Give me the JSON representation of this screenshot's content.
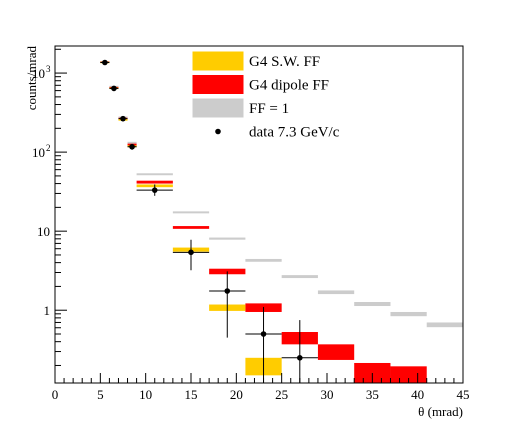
{
  "chart_data": {
    "type": "scatter",
    "title": "",
    "xlabel": "θ (mrad)",
    "ylabel": "counts/mrad",
    "xlim": [
      0,
      45
    ],
    "ylim": [
      0.12,
      2200
    ],
    "yscale": "log",
    "x_ticks": [
      "0",
      "5",
      "10",
      "15",
      "20",
      "25",
      "30",
      "35",
      "40",
      "45"
    ],
    "y_ticks": [
      {
        "value": 1,
        "base": "1",
        "exp": ""
      },
      {
        "value": 10,
        "base": "10",
        "exp": ""
      },
      {
        "value": 100,
        "base": "10",
        "exp": "2"
      },
      {
        "value": 1000,
        "base": "10",
        "exp": "3"
      }
    ],
    "grid": false,
    "legend_position": "top-right",
    "legend": [
      {
        "label": "G4 S.W. FF",
        "style": "box",
        "fill": "#ffcc00",
        "stroke": "#ffcc00"
      },
      {
        "label": "G4 dipole FF",
        "style": "box",
        "fill": "#ff0000",
        "stroke": "#ff0000"
      },
      {
        "label": "FF = 1",
        "style": "box",
        "fill": "#cccccc",
        "stroke": "#cccccc"
      },
      {
        "label": "data 7.3 GeV/c",
        "style": "marker",
        "fill": "#000000",
        "stroke": "#000000"
      }
    ],
    "series": [
      {
        "name": "FF = 1",
        "color": "#cccccc",
        "bins": [
          {
            "x0": 5,
            "x1": 6,
            "y0": 1380,
            "y1": 1420
          },
          {
            "x0": 6,
            "x1": 7,
            "y0": 660,
            "y1": 690
          },
          {
            "x0": 7,
            "x1": 8,
            "y0": 268,
            "y1": 282
          },
          {
            "x0": 8,
            "x1": 9,
            "y0": 127,
            "y1": 135
          },
          {
            "x0": 9,
            "x1": 13,
            "y0": 51,
            "y1": 54
          },
          {
            "x0": 13,
            "x1": 17,
            "y0": 16.8,
            "y1": 17.8
          },
          {
            "x0": 17,
            "x1": 21,
            "y0": 7.8,
            "y1": 8.3
          },
          {
            "x0": 21,
            "x1": 25,
            "y0": 4.1,
            "y1": 4.45
          },
          {
            "x0": 25,
            "x1": 29,
            "y0": 2.55,
            "y1": 2.78
          },
          {
            "x0": 29,
            "x1": 33,
            "y0": 1.6,
            "y1": 1.78
          },
          {
            "x0": 33,
            "x1": 37,
            "y0": 1.13,
            "y1": 1.27
          },
          {
            "x0": 37,
            "x1": 41,
            "y0": 0.84,
            "y1": 0.95
          },
          {
            "x0": 41,
            "x1": 45,
            "y0": 0.61,
            "y1": 0.7
          }
        ]
      },
      {
        "name": "G4 dipole FF",
        "color": "#ff0000",
        "bins": [
          {
            "x0": 5,
            "x1": 6,
            "y0": 1360,
            "y1": 1400
          },
          {
            "x0": 6,
            "x1": 7,
            "y0": 640,
            "y1": 668
          },
          {
            "x0": 7,
            "x1": 8,
            "y0": 258,
            "y1": 272
          },
          {
            "x0": 8,
            "x1": 9,
            "y0": 120,
            "y1": 128
          },
          {
            "x0": 9,
            "x1": 13,
            "y0": 40,
            "y1": 43.5
          },
          {
            "x0": 13,
            "x1": 17,
            "y0": 10.7,
            "y1": 11.6
          },
          {
            "x0": 17,
            "x1": 21,
            "y0": 2.85,
            "y1": 3.35
          },
          {
            "x0": 21,
            "x1": 25,
            "y0": 0.95,
            "y1": 1.22
          },
          {
            "x0": 25,
            "x1": 29,
            "y0": 0.37,
            "y1": 0.53
          },
          {
            "x0": 29,
            "x1": 33,
            "y0": 0.235,
            "y1": 0.37
          },
          {
            "x0": 33,
            "x1": 37,
            "y0": 0.12,
            "y1": 0.215
          },
          {
            "x0": 37,
            "x1": 41,
            "y0": 0.12,
            "y1": 0.195
          }
        ]
      },
      {
        "name": "G4 S.W. FF",
        "color": "#ffcc00",
        "bins": [
          {
            "x0": 5,
            "x1": 6,
            "y0": 1350,
            "y1": 1390
          },
          {
            "x0": 6,
            "x1": 7,
            "y0": 630,
            "y1": 655
          },
          {
            "x0": 7,
            "x1": 8,
            "y0": 250,
            "y1": 264
          },
          {
            "x0": 8,
            "x1": 9,
            "y0": 115,
            "y1": 122
          },
          {
            "x0": 9,
            "x1": 13,
            "y0": 36,
            "y1": 39
          },
          {
            "x0": 13,
            "x1": 17,
            "y0": 5.5,
            "y1": 6.2
          },
          {
            "x0": 17,
            "x1": 21,
            "y0": 0.98,
            "y1": 1.18
          },
          {
            "x0": 21,
            "x1": 25,
            "y0": 0.15,
            "y1": 0.25
          }
        ]
      },
      {
        "name": "data 7.3 GeV/c",
        "color": "#000000",
        "points": [
          {
            "x": 5.5,
            "y": 1360,
            "xerr": 0.5,
            "ylo": 1290,
            "yhi": 1430
          },
          {
            "x": 6.5,
            "y": 640,
            "xerr": 0.5,
            "ylo": 600,
            "yhi": 680
          },
          {
            "x": 7.5,
            "y": 265,
            "xerr": 0.5,
            "ylo": 245,
            "yhi": 285
          },
          {
            "x": 8.5,
            "y": 117,
            "xerr": 0.5,
            "ylo": 107,
            "yhi": 127
          },
          {
            "x": 11,
            "y": 33,
            "xerr": 2,
            "ylo": 28,
            "yhi": 39
          },
          {
            "x": 15,
            "y": 5.4,
            "xerr": 2,
            "ylo": 3.2,
            "yhi": 7.8
          },
          {
            "x": 19,
            "y": 1.75,
            "xerr": 2,
            "ylo": 0.45,
            "yhi": 3.1
          },
          {
            "x": 23,
            "y": 0.5,
            "xerr": 2,
            "ylo": 0.12,
            "yhi": 1.1
          },
          {
            "x": 27,
            "y": 0.25,
            "xerr": 2,
            "ylo": 0.12,
            "yhi": 0.75
          }
        ]
      }
    ]
  }
}
